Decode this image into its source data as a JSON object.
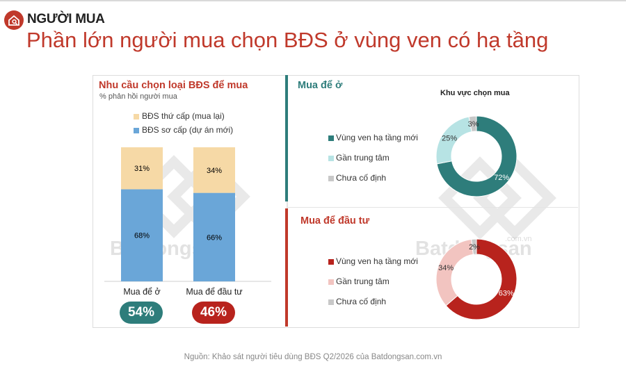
{
  "header": {
    "tag": "NGƯỜI MUA",
    "title": "Phần lớn người mua chọn BĐS ở vùng ven có hạ tầng"
  },
  "left_panel": {
    "title": "Nhu cầu chọn loại BĐS để mua",
    "subtitle": "% phản hồi người mua",
    "legend": [
      {
        "label": "BĐS thứ cấp (mua lại)",
        "color": "#f6d9a6"
      },
      {
        "label": "BĐS sơ cấp (dự án mới)",
        "color": "#6aa6d8"
      }
    ],
    "totals": [
      {
        "label": "54%",
        "color": "#2e7d7b"
      },
      {
        "label": "46%",
        "color": "#b8231d"
      }
    ]
  },
  "right_panel": {
    "top": {
      "title": "Mua để ở",
      "donut_title": "Khu vực chọn mua",
      "legend": [
        {
          "label": "Vùng ven hạ tầng mới",
          "color": "#2e7d7b"
        },
        {
          "label": "Gần trung tâm",
          "color": "#b7e3e4"
        },
        {
          "label": "Chưa cố định",
          "color": "#c8c8c8"
        }
      ]
    },
    "bottom": {
      "title": "Mua để đầu tư",
      "legend": [
        {
          "label": "Vùng ven hạ tầng mới",
          "color": "#b8231d"
        },
        {
          "label": "Gần trung tâm",
          "color": "#f2c4c0"
        },
        {
          "label": "Chưa cố định",
          "color": "#c8c8c8"
        }
      ]
    }
  },
  "watermark": {
    "text": "Batdongsan",
    "sub": ".com.vn"
  },
  "source": "Nguồn: Khảo sát người tiêu dùng BĐS Q2/2026 của Batdongsan.com.vn",
  "chart_data": [
    {
      "type": "bar",
      "stacked": true,
      "title": "Nhu cầu chọn loại BĐS để mua",
      "subtitle": "% phản hồi người mua",
      "categories": [
        "Mua để ở",
        "Mua để đầu tư"
      ],
      "series": [
        {
          "name": "BĐS sơ cấp (dự án mới)",
          "values": [
            68,
            66
          ],
          "labels": [
            "68%",
            "66%"
          ],
          "color": "#6aa6d8"
        },
        {
          "name": "BĐS thứ cấp (mua lại)",
          "values": [
            31,
            34
          ],
          "labels": [
            "31%",
            "34%"
          ],
          "color": "#f6d9a6"
        }
      ],
      "legend_position": "top"
    },
    {
      "type": "pie",
      "donut": true,
      "title": "Khu vực chọn mua",
      "categories": [
        "Vùng ven hạ tầng mới",
        "Gần trung tâm",
        "Chưa cố định"
      ],
      "values": [
        72,
        25,
        3
      ],
      "labels": [
        "72%",
        "25%",
        "3%"
      ],
      "colors": [
        "#2e7d7b",
        "#b7e3e4",
        "#c8c8c8"
      ]
    },
    {
      "type": "pie",
      "donut": true,
      "categories": [
        "Vùng ven hạ tầng mới",
        "Gần trung tâm",
        "Chưa cố định"
      ],
      "values": [
        63,
        34,
        2
      ],
      "labels": [
        "63%",
        "34%",
        "2%"
      ],
      "colors": [
        "#b8231d",
        "#f2c4c0",
        "#c8c8c8"
      ]
    }
  ]
}
